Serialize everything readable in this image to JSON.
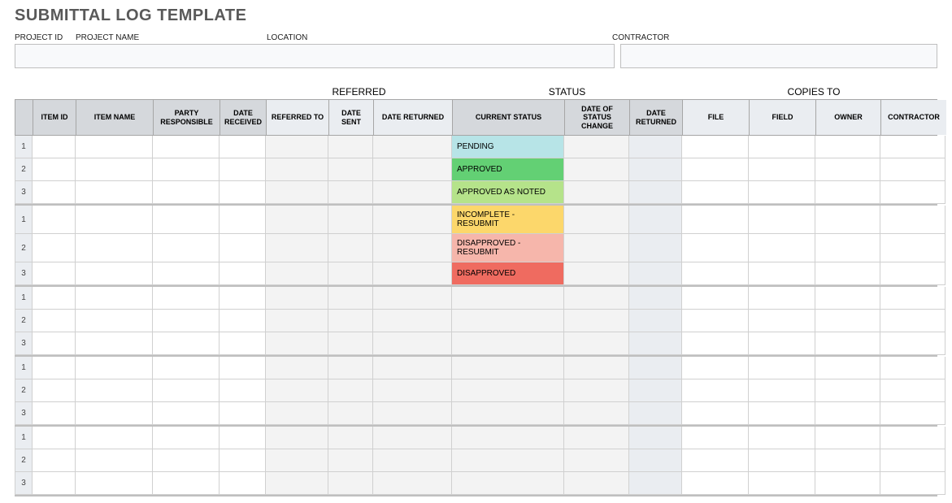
{
  "title": "SUBMITTAL LOG TEMPLATE",
  "meta_labels": {
    "project_id": "PROJECT ID",
    "project_name": "PROJECT NAME",
    "location": "LOCATION",
    "contractor": "CONTRACTOR"
  },
  "section_headers": {
    "referred": "REFERRED",
    "status": "STATUS",
    "copies_to": "COPIES TO"
  },
  "columns": {
    "rownum": "",
    "item_id": "ITEM ID",
    "item_name": "ITEM NAME",
    "party_responsible": "PARTY RESPONSIBLE",
    "date_received": "DATE RECEIVED",
    "referred_to": "REFERRED TO",
    "date_sent": "DATE SENT",
    "date_returned_ref": "DATE RETURNED",
    "current_status": "CURRENT STATUS",
    "date_of_status_change": "DATE OF STATUS CHANGE",
    "date_returned_stat": "DATE RETURNED",
    "file": "FILE",
    "field": "FIELD",
    "owner": "OWNER",
    "contractor": "CONTRACTOR"
  },
  "status_colors": {
    "pending": "#b7e4e7",
    "approved": "#63d074",
    "approved_as_noted": "#b5e38a",
    "incomplete_resubmit": "#fcd76b",
    "disapproved_resubmit": "#f6b6ab",
    "disapproved": "#ef6b60"
  },
  "groups": [
    {
      "rows": [
        {
          "num": "1",
          "current_status": "PENDING",
          "status_color_key": "pending"
        },
        {
          "num": "2",
          "current_status": "APPROVED",
          "status_color_key": "approved"
        },
        {
          "num": "3",
          "current_status": "APPROVED AS NOTED",
          "status_color_key": "approved_as_noted"
        }
      ]
    },
    {
      "rows": [
        {
          "num": "1",
          "current_status": "INCOMPLETE - RESUBMIT",
          "status_color_key": "incomplete_resubmit"
        },
        {
          "num": "2",
          "current_status": "DISAPPROVED - RESUBMIT",
          "status_color_key": "disapproved_resubmit"
        },
        {
          "num": "3",
          "current_status": "DISAPPROVED",
          "status_color_key": "disapproved"
        }
      ]
    },
    {
      "rows": [
        {
          "num": "1",
          "current_status": "",
          "status_color_key": null
        },
        {
          "num": "2",
          "current_status": "",
          "status_color_key": null
        },
        {
          "num": "3",
          "current_status": "",
          "status_color_key": null
        }
      ]
    },
    {
      "rows": [
        {
          "num": "1",
          "current_status": "",
          "status_color_key": null
        },
        {
          "num": "2",
          "current_status": "",
          "status_color_key": null
        },
        {
          "num": "3",
          "current_status": "",
          "status_color_key": null
        }
      ]
    },
    {
      "rows": [
        {
          "num": "1",
          "current_status": "",
          "status_color_key": null
        },
        {
          "num": "2",
          "current_status": "",
          "status_color_key": null
        },
        {
          "num": "3",
          "current_status": "",
          "status_color_key": null
        }
      ]
    }
  ]
}
